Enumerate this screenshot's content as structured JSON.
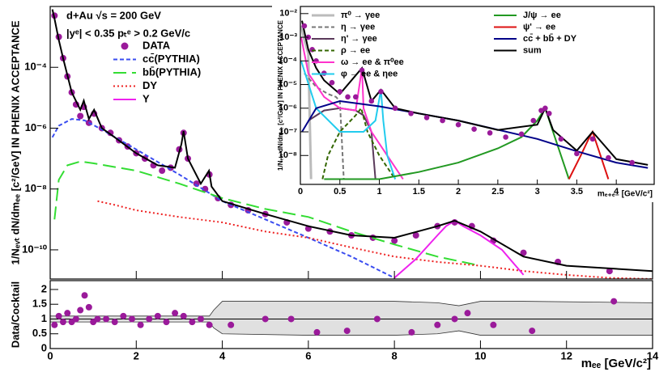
{
  "chart_data": [
    {
      "type": "line",
      "ylog": true,
      "xlim": [
        0,
        14
      ],
      "ylim": [
        1.1e-11,
        0.01
      ],
      "xticks": [
        0,
        2,
        4,
        6,
        8,
        10,
        12,
        14
      ],
      "show_xtick_labels": false,
      "yticks": [
        {
          "value": 1e-10,
          "label": "10⁻¹⁰"
        },
        {
          "value": 1e-08,
          "label": "10⁻⁸"
        },
        {
          "value": 1e-06,
          "label": "10⁻⁶"
        },
        {
          "value": 0.0001,
          "label": "10⁻⁴"
        }
      ],
      "ylabel": "1/Nₑᵥₜ dN/dmₑₑ [c²/GeV] IN PHENIX ACCEPTANCE",
      "annotations": [
        "d+Au   √s = 200 GeV",
        "|yᵉ| < 0.35   pₜᵉ > 0.2 GeV/c"
      ],
      "legend": "upper-left",
      "legend_rows": 5,
      "series": [
        {
          "name": "DATA",
          "kind": "points",
          "color": "#9a1a9a",
          "x": [
            0.1,
            0.2,
            0.3,
            0.4,
            0.5,
            0.6,
            0.7,
            0.78,
            0.9,
            1.02,
            1.2,
            1.4,
            1.6,
            1.8,
            2.0,
            2.2,
            2.4,
            2.6,
            2.8,
            3.0,
            3.1,
            3.2,
            3.4,
            3.6,
            3.7,
            3.9,
            4.2,
            4.6,
            5.0,
            5.5,
            6.0,
            6.5,
            7.0,
            7.5,
            8.0,
            8.5,
            9.0,
            9.4,
            9.8,
            10.3,
            11.0,
            11.8,
            13.0
          ],
          "values": [
            0.005,
            0.001,
            0.0002,
            5e-05,
            1.5e-05,
            6e-06,
            2.5e-06,
            5e-06,
            1.5e-06,
            3e-06,
            1e-06,
            7e-07,
            4e-07,
            2.5e-07,
            1.5e-07,
            1e-07,
            6e-08,
            4e-08,
            5e-08,
            2e-07,
            7e-07,
            1e-07,
            1.5e-08,
            1e-08,
            3e-08,
            5e-09,
            3e-09,
            2e-09,
            1.5e-09,
            8e-10,
            5e-10,
            4e-10,
            3e-10,
            2.5e-10,
            2e-10,
            3e-10,
            6e-10,
            8e-10,
            6e-10,
            2e-10,
            8e-11,
            4e-11,
            2e-11
          ]
        },
        {
          "name": "cc̄(PYTHIA)",
          "kind": "line",
          "dash": "dashed",
          "color": "#3a4cf0",
          "x": [
            0.05,
            0.2,
            0.5,
            0.8,
            1.2,
            2,
            3,
            4,
            5,
            6,
            7,
            8
          ],
          "values": [
            5e-07,
            1.2e-06,
            2e-06,
            1.8e-06,
            9e-07,
            2e-07,
            3e-08,
            4e-09,
            1e-09,
            2.5e-10,
            6e-11,
            1.2e-11
          ]
        },
        {
          "name": "bb̄(PYTHIA)",
          "kind": "line",
          "dash": "longdash",
          "color": "#33dd33",
          "x": [
            0.1,
            0.2,
            0.4,
            0.7,
            1,
            2,
            3,
            4,
            5,
            6,
            7,
            8,
            9,
            10
          ],
          "values": [
            1e-09,
            2e-08,
            6e-08,
            8e-08,
            7e-08,
            4e-08,
            1.5e-08,
            5e-09,
            2.2e-09,
            1.2e-09,
            4e-10,
            1.5e-10,
            6e-11,
            3e-11
          ]
        },
        {
          "name": "DY",
          "kind": "line",
          "dash": "dotted",
          "color": "#ee2222",
          "x": [
            1.1,
            1.5,
            2,
            3,
            4,
            5,
            6,
            7,
            8,
            9,
            10,
            11,
            12,
            13,
            14
          ],
          "values": [
            4e-09,
            3e-09,
            2e-09,
            1.2e-09,
            8e-10,
            4e-10,
            2.5e-10,
            1.2e-10,
            6e-11,
            4e-11,
            3e-11,
            2e-11,
            1.5e-11,
            1.2e-11,
            1.1e-11
          ]
        },
        {
          "name": "Υ",
          "kind": "line",
          "color": "#ee22ee",
          "x": [
            8,
            8.5,
            9,
            9.2,
            9.4,
            9.6,
            10,
            10.5,
            11
          ],
          "values": [
            1.2e-11,
            5e-11,
            3e-10,
            6e-10,
            9e-10,
            6e-10,
            3e-10,
            1e-10,
            1.5e-11
          ]
        },
        {
          "kind": "line",
          "color": "#000000",
          "x": [
            0.05,
            0.1,
            0.2,
            0.3,
            0.5,
            0.7,
            0.78,
            0.9,
            1.02,
            1.2,
            1.5,
            2,
            2.5,
            2.9,
            3.05,
            3.1,
            3.2,
            3.5,
            3.69,
            3.75,
            4,
            5,
            6,
            7,
            8,
            9,
            9.4,
            10,
            11,
            12,
            14
          ],
          "values": [
            0.008,
            0.004,
            0.0008,
            0.0002,
            1.5e-05,
            4e-06,
            8e-06,
            2e-06,
            4e-06,
            1e-06,
            5e-07,
            1.5e-07,
            6e-08,
            5e-08,
            3e-07,
            8e-07,
            1e-07,
            1.5e-08,
            4e-08,
            1.2e-08,
            4e-09,
            1.5e-09,
            6e-10,
            3e-10,
            2.5e-10,
            6e-10,
            9e-10,
            4e-10,
            6e-11,
            3e-11,
            2e-11
          ]
        }
      ]
    },
    {
      "type": "line",
      "ylog": true,
      "xlim": [
        0,
        4.48
      ],
      "ylim": [
        6e-10,
        0.02
      ],
      "xticks": [
        0,
        0.5,
        1,
        1.5,
        2,
        2.5,
        3,
        3.5,
        4
      ],
      "show_xtick_labels": true,
      "yticks": [
        {
          "value": 1e-08,
          "label": "10⁻⁸"
        },
        {
          "value": 1e-07,
          "label": "10⁻⁷"
        },
        {
          "value": 1e-06,
          "label": "10⁻⁶"
        },
        {
          "value": 1e-05,
          "label": "10⁻⁵"
        },
        {
          "value": 0.0001,
          "label": "10⁻⁴"
        },
        {
          "value": 0.001,
          "label": "10⁻³"
        },
        {
          "value": 0.01,
          "label": "10⁻²"
        }
      ],
      "xlabel": "mₑ₊ₑ₋ [GeV/c²]",
      "ylabel": "1/Nₑᵥₜ dN/dmₑₑ [c²/GeV] IN PHENIX ACCEPTANCE",
      "legend": "upper-left",
      "legend_rows": 6,
      "series": [
        {
          "name": "π⁰ → γee",
          "kind": "line",
          "color": "#bbbbbb",
          "x": [
            0.01,
            0.05,
            0.1,
            0.135
          ],
          "values": [
            0.003,
            0.0008,
            0.0002,
            1e-09
          ]
        },
        {
          "name": "η → γee",
          "kind": "line",
          "dash": "dashed",
          "color": "#777777",
          "x": [
            0.05,
            0.2,
            0.35,
            0.45,
            0.5,
            0.55
          ],
          "values": [
            3e-05,
            8e-06,
            4e-06,
            3e-06,
            2e-06,
            1e-09
          ]
        },
        {
          "name": "η' → γee",
          "kind": "line",
          "color": "#5a3a5a",
          "x": [
            0.1,
            0.3,
            0.5,
            0.7,
            0.8,
            0.9,
            0.95
          ],
          "values": [
            3e-07,
            8e-07,
            1e-06,
            8e-07,
            5e-07,
            1e-07,
            1e-09
          ]
        },
        {
          "name": "ρ → ee",
          "kind": "line",
          "dash": "dashed",
          "color": "#336600",
          "x": [
            0.28,
            0.35,
            0.5,
            0.7,
            0.77,
            0.85,
            1.0,
            1.2
          ],
          "values": [
            1e-09,
            1e-08,
            1e-07,
            5e-07,
            1e-06,
            1e-07,
            1e-08,
            1e-09
          ]
        },
        {
          "name": "ω → ee & π⁰ee",
          "kind": "line",
          "color": "#ff33cc",
          "x": [
            0.01,
            0.1,
            0.3,
            0.5,
            0.7,
            0.78,
            0.8,
            0.9,
            1.1,
            1.3
          ],
          "values": [
            0.001,
            3e-05,
            3e-06,
            1e-06,
            8e-07,
            5e-05,
            1e-06,
            1e-07,
            1e-08,
            1e-09
          ]
        },
        {
          "name": "φ → ee & ηee",
          "kind": "line",
          "color": "#22ccee",
          "x": [
            0.01,
            0.2,
            0.5,
            0.8,
            0.95,
            1.02,
            1.05,
            1.1,
            1.2
          ],
          "values": [
            0.0001,
            1e-06,
            1e-07,
            1e-07,
            3e-07,
            6e-06,
            3e-07,
            1e-08,
            1e-09
          ]
        },
        {
          "name": "J/ψ → ee",
          "kind": "line",
          "color": "#229922",
          "x": [
            0.3,
            1,
            1.5,
            2,
            2.5,
            2.8,
            3.0,
            3.1,
            3.2,
            3.3,
            3.4
          ],
          "values": [
            1e-09,
            1e-09,
            2e-09,
            5e-09,
            2e-08,
            6e-08,
            3e-07,
            1e-06,
            1e-07,
            1e-08,
            1e-09
          ]
        },
        {
          "name": "ψ' → ee",
          "kind": "line",
          "color": "#dd1111",
          "x": [
            3.4,
            3.55,
            3.65,
            3.7,
            3.8,
            3.9
          ],
          "values": [
            1e-09,
            1e-08,
            5e-08,
            1e-07,
            1e-08,
            1e-09
          ]
        },
        {
          "name": "cc̄ + bb̄ + DY",
          "kind": "line",
          "color": "#000088",
          "x": [
            0.02,
            0.2,
            0.5,
            1,
            2,
            3,
            3.5,
            4,
            4.4
          ],
          "values": [
            1e-07,
            1e-06,
            2e-06,
            1.2e-06,
            3e-07,
            5e-08,
            1.5e-08,
            5e-09,
            3e-09
          ]
        },
        {
          "name": "sum",
          "kind": "line",
          "color": "#000000",
          "x": [
            0.02,
            0.1,
            0.2,
            0.3,
            0.5,
            0.78,
            0.9,
            1.02,
            1.2,
            1.5,
            2,
            2.5,
            3,
            3.1,
            3.2,
            3.5,
            3.7,
            4,
            4.4
          ],
          "values": [
            0.005,
            0.0003,
            5e-05,
            1.5e-05,
            4e-06,
            5e-05,
            2e-06,
            6e-06,
            1e-06,
            6e-07,
            3e-07,
            1.2e-07,
            2e-07,
            1e-06,
            1.2e-07,
            1.6e-08,
            1e-07,
            7e-09,
            4e-09
          ]
        },
        {
          "kind": "points",
          "color": "#9a1a9a",
          "x": [
            0.05,
            0.1,
            0.15,
            0.2,
            0.3,
            0.4,
            0.5,
            0.6,
            0.7,
            0.78,
            0.9,
            1.02,
            1.2,
            1.4,
            1.6,
            1.8,
            2,
            2.2,
            2.4,
            2.6,
            2.8,
            2.95,
            3.05,
            3.1,
            3.15,
            3.3,
            3.5,
            3.7,
            3.9,
            4.2
          ],
          "values": [
            0.003,
            0.001,
            0.0003,
            0.0001,
            3e-05,
            1.2e-05,
            5e-06,
            3e-06,
            3e-06,
            4e-05,
            2e-06,
            5e-06,
            1e-06,
            6e-07,
            4e-07,
            3e-07,
            2e-07,
            1.3e-07,
            9e-08,
            6e-08,
            8e-08,
            3e-07,
            8e-07,
            1e-06,
            6e-07,
            5e-08,
            1.2e-08,
            5e-08,
            8e-09,
            5e-09
          ]
        }
      ]
    },
    {
      "type": "line",
      "ylog": false,
      "xlim": [
        0,
        14
      ],
      "ylim": [
        0,
        2.3
      ],
      "xticks": [
        0,
        2,
        4,
        6,
        8,
        10,
        12,
        14
      ],
      "show_xtick_labels": true,
      "yticks": [
        0,
        0.5,
        1,
        {
          "value": 1.5,
          "label": "1.5"
        },
        2
      ],
      "xlabel": "mₑₑ [GeV/c²]",
      "ylabel": "Data/Cocktail",
      "reference": 1,
      "band": {
        "color": "#bbbbbb",
        "x": [
          0,
          1,
          3,
          3.7,
          3.8,
          4,
          6,
          8,
          9,
          9.5,
          10,
          11,
          14
        ],
        "upper": [
          1.1,
          1.1,
          1.1,
          1.1,
          1.3,
          1.6,
          1.6,
          1.6,
          1.55,
          1.45,
          1.6,
          1.6,
          1.55
        ],
        "lower": [
          0.9,
          0.9,
          0.9,
          0.9,
          0.7,
          0.5,
          0.45,
          0.45,
          0.5,
          0.6,
          0.45,
          0.45,
          0.45
        ]
      },
      "series": [
        {
          "kind": "points",
          "color": "#9a1a9a",
          "x": [
            0.1,
            0.2,
            0.3,
            0.4,
            0.5,
            0.6,
            0.7,
            0.8,
            0.9,
            1.0,
            1.1,
            1.3,
            1.5,
            1.7,
            1.9,
            2.1,
            2.3,
            2.5,
            2.7,
            2.9,
            3.1,
            3.3,
            3.5,
            3.7,
            4.2,
            5.0,
            5.6,
            6.2,
            6.9,
            7.6,
            8.4,
            9.0,
            9.4,
            9.7,
            10.3,
            11.2,
            13.1
          ],
          "values": [
            0.8,
            1.1,
            0.9,
            1.2,
            0.9,
            1.0,
            1.3,
            1.8,
            1.4,
            0.9,
            1.0,
            1.0,
            0.9,
            1.1,
            1.0,
            0.8,
            1.0,
            1.1,
            0.9,
            1.2,
            1.1,
            0.9,
            1.0,
            0.8,
            0.8,
            1.0,
            1.0,
            0.55,
            0.6,
            1.0,
            0.55,
            0.8,
            1.0,
            1.2,
            0.8,
            0.6,
            1.6
          ]
        }
      ]
    }
  ]
}
